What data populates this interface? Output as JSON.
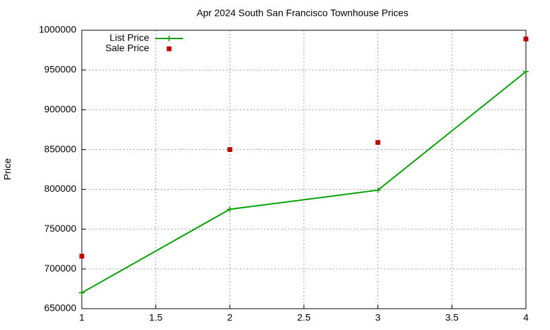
{
  "chart_data": {
    "type": "line",
    "title": "Apr 2024 South San Francisco Townhouse Prices",
    "y_label": "Price",
    "x": [
      1,
      2,
      3,
      4
    ],
    "series": [
      {
        "name": "List Price",
        "color": "#00a000",
        "style": "linespoints",
        "values": [
          670000,
          775000,
          799000,
          948000
        ]
      },
      {
        "name": "Sale Price",
        "color": "#c00000",
        "style": "points",
        "values": [
          716000,
          850000,
          859000,
          989000
        ]
      }
    ],
    "xlim": [
      1,
      4
    ],
    "xticks": [
      1,
      1.5,
      2,
      2.5,
      3,
      3.5,
      4
    ],
    "ylim": [
      650000,
      1000000
    ],
    "yticks": [
      650000,
      700000,
      750000,
      800000,
      850000,
      900000,
      950000,
      1000000
    ],
    "grid": true,
    "legend": "top-left"
  }
}
